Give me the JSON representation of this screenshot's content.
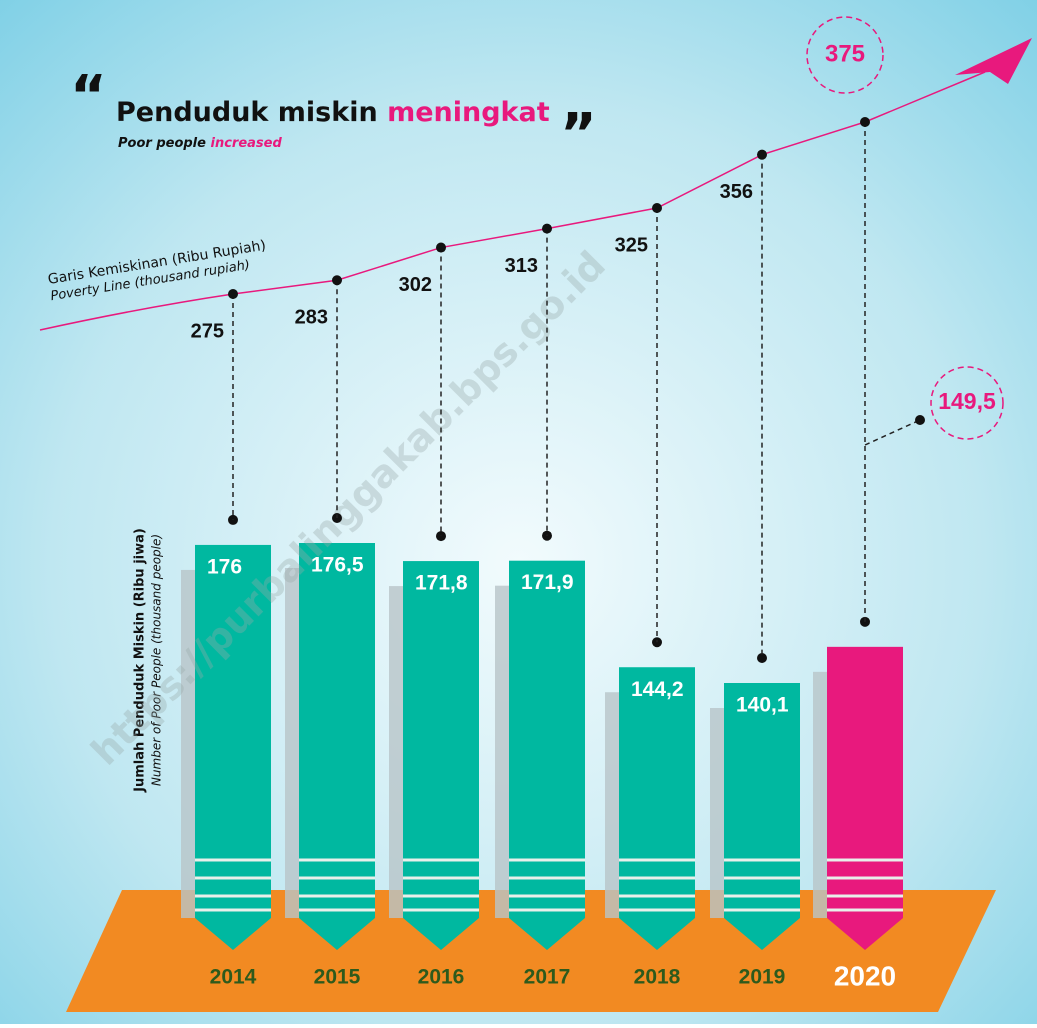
{
  "chart_data": {
    "type": "bar",
    "open_quote": "“",
    "title": "Penduduk miskin",
    "title_highlight": "meningkat",
    "close_quote": "”",
    "subtitle": "Poor people",
    "subtitle_highlight": "increased",
    "line_label": "Garis Kemiskinan (Ribu Rupiah)",
    "line_label_en": "Poverty Line (thousand rupiah)",
    "bar_label": "Jumlah Penduduk Miskin (Ribu jiwa)",
    "bar_label_en": "Number of Poor People (thousand people)",
    "watermark": "https://purbalinggakab.bps.go.id",
    "categories": [
      "2014",
      "2015",
      "2016",
      "2017",
      "2018",
      "2019",
      "2020"
    ],
    "series": [
      {
        "type": "bar",
        "color": "#00b8a0",
        "highlight_color": "#e8197d",
        "values": [
          176,
          176.5,
          171.8,
          171.9,
          144.2,
          140.1,
          149.5
        ],
        "value_labels": [
          "176",
          "176,5",
          "171,8",
          "171,9",
          "144,2",
          "140,1",
          "149,5"
        ]
      },
      {
        "type": "line",
        "color": "#e8197d",
        "values": [
          275,
          283,
          302,
          313,
          325,
          356,
          375
        ]
      }
    ]
  }
}
